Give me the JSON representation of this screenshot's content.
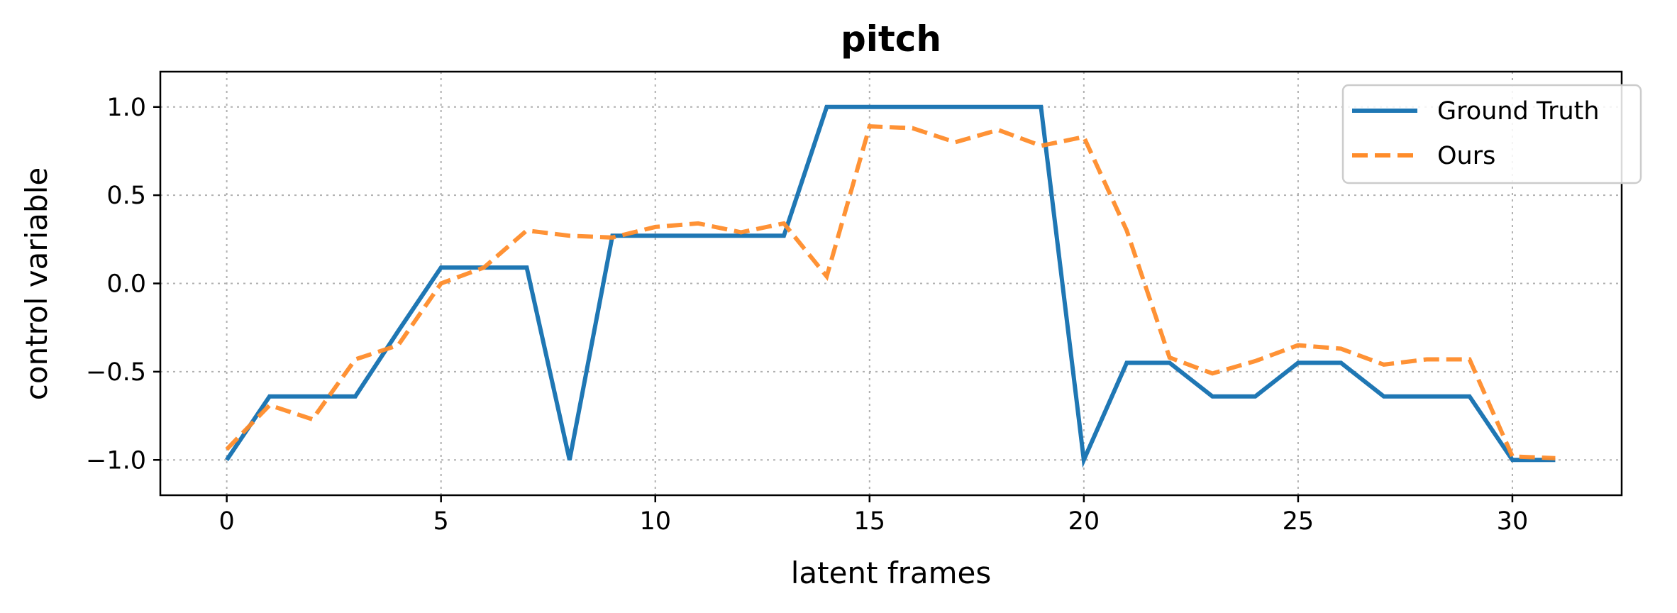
{
  "chart_data": {
    "type": "line",
    "title": "pitch",
    "xlabel": "latent frames",
    "ylabel": "control variable",
    "xlim": [
      -1.55,
      32.55
    ],
    "ylim": [
      -1.2,
      1.2
    ],
    "xticks": [
      0,
      5,
      10,
      15,
      20,
      25,
      30
    ],
    "yticks": [
      -1.0,
      -0.5,
      0.0,
      0.5,
      1.0
    ],
    "xtick_labels": [
      "0",
      "5",
      "10",
      "15",
      "20",
      "25",
      "30"
    ],
    "ytick_labels": [
      "−1.0",
      "−0.5",
      "0.0",
      "0.5",
      "1.0"
    ],
    "grid": true,
    "legend_position": "top-right",
    "x": [
      0,
      1,
      2,
      3,
      4,
      5,
      6,
      7,
      8,
      9,
      10,
      11,
      12,
      13,
      14,
      15,
      16,
      17,
      18,
      19,
      20,
      21,
      22,
      23,
      24,
      25,
      26,
      27,
      28,
      29,
      30,
      31
    ],
    "series": [
      {
        "name": "Ground Truth",
        "color": "#1f77b4",
        "style": "solid",
        "values": [
          -1.0,
          -0.64,
          -0.64,
          -0.64,
          -0.27,
          0.09,
          0.09,
          0.09,
          -1.0,
          0.27,
          0.27,
          0.27,
          0.27,
          0.27,
          1.0,
          1.0,
          1.0,
          1.0,
          1.0,
          1.0,
          -1.0,
          -0.45,
          -0.45,
          -0.64,
          -0.64,
          -0.45,
          -0.45,
          -0.64,
          -0.64,
          -0.64,
          -1.0,
          -1.0
        ]
      },
      {
        "name": "Ours",
        "color": "#ff8c2a",
        "style": "dashed",
        "values": [
          -0.94,
          -0.69,
          -0.77,
          -0.43,
          -0.35,
          0.0,
          0.09,
          0.3,
          0.27,
          0.26,
          0.32,
          0.34,
          0.29,
          0.34,
          0.04,
          0.89,
          0.88,
          0.8,
          0.87,
          0.78,
          0.83,
          0.3,
          -0.42,
          -0.51,
          -0.44,
          -0.35,
          -0.37,
          -0.46,
          -0.43,
          -0.43,
          -0.98,
          -0.99
        ]
      }
    ]
  }
}
